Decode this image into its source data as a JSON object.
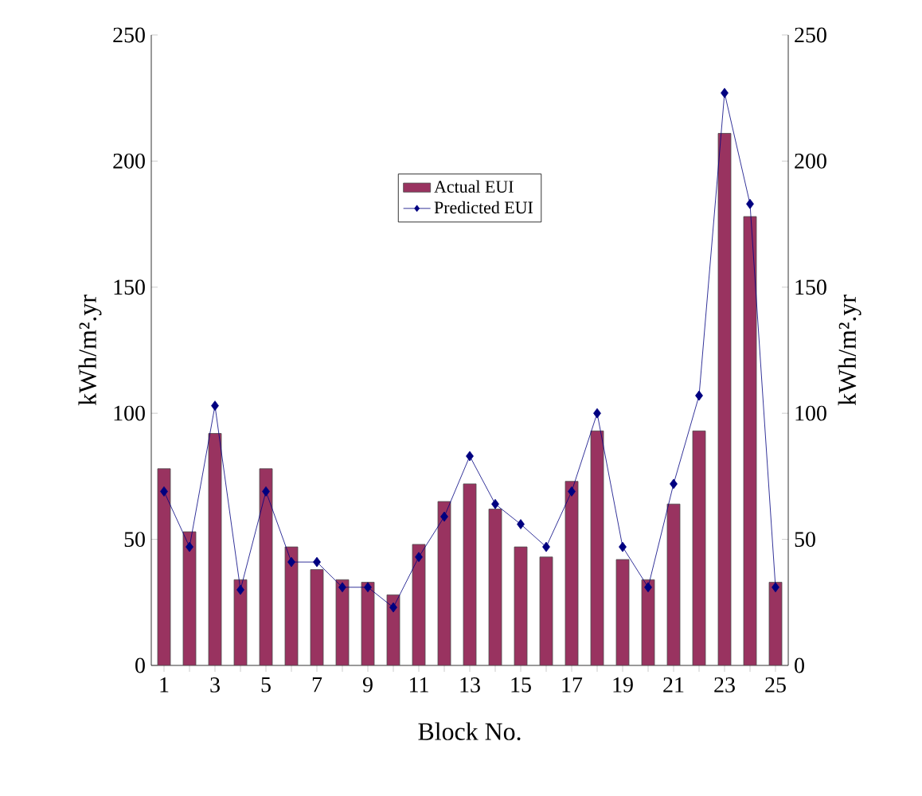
{
  "chart_data": {
    "type": "bar",
    "categories": [
      "1",
      null,
      "3",
      null,
      "5",
      null,
      "7",
      null,
      "9",
      null,
      "11",
      null,
      "13",
      null,
      "15",
      null,
      "17",
      null,
      "19",
      null,
      "21",
      null,
      "23",
      null,
      "25"
    ],
    "series": [
      {
        "name": "Actual EUI",
        "color": "#993360",
        "values": [
          78,
          53,
          92,
          34,
          78,
          47,
          38,
          34,
          33,
          28,
          48,
          65,
          72,
          62,
          47,
          43,
          73,
          93,
          42,
          34,
          64,
          93,
          211,
          178,
          33
        ]
      },
      {
        "name": "Predicted EUI",
        "type": "line",
        "color": "#000080",
        "marker": "diamond",
        "values": [
          69,
          47,
          103,
          30,
          69,
          41,
          41,
          31,
          31,
          23,
          43,
          59,
          83,
          64,
          56,
          47,
          69,
          100,
          47,
          31,
          72,
          107,
          227,
          183,
          31
        ]
      }
    ],
    "xlabel": "Block No.",
    "ylabel": "kWh/m².yr",
    "y2label": "kWh/m².yr",
    "ylim": [
      0,
      250
    ],
    "yticks": [
      0,
      50,
      100,
      150,
      200,
      250
    ],
    "y2lim": [
      0,
      250
    ],
    "y2ticks": [
      0,
      50,
      100,
      150,
      200,
      250
    ],
    "legend": "top",
    "grid": false
  }
}
